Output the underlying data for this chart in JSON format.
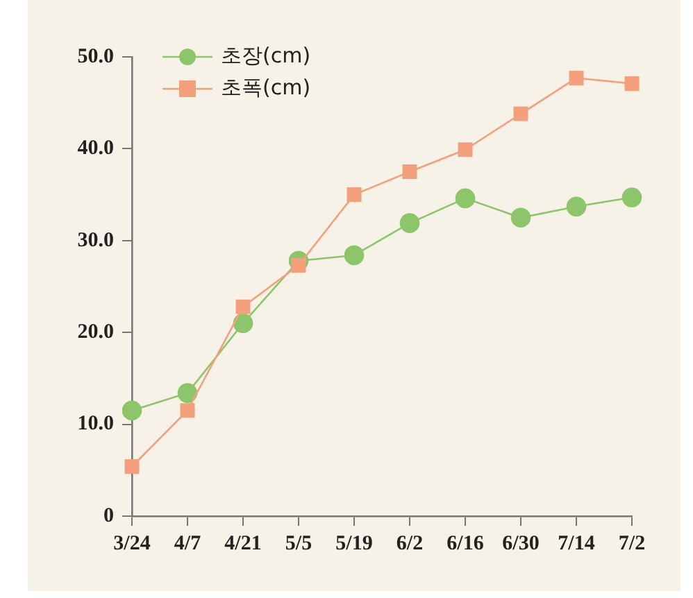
{
  "chart_data": {
    "type": "line",
    "categories": [
      "3/24",
      "4/7",
      "4/21",
      "5/5",
      "5/19",
      "6/2",
      "6/16",
      "6/30",
      "7/14",
      "7/2"
    ],
    "series": [
      {
        "name": "초장(cm)",
        "color": "#8cc56a",
        "marker": "circle",
        "values": [
          11.5,
          13.4,
          21.0,
          27.8,
          28.4,
          31.9,
          34.6,
          32.5,
          33.7,
          34.7
        ]
      },
      {
        "name": "초폭(cm)",
        "color": "#f4a07c",
        "marker": "square",
        "values": [
          5.4,
          11.5,
          22.8,
          27.3,
          35.0,
          37.5,
          39.9,
          43.8,
          47.7,
          47.1
        ]
      }
    ],
    "ylim": [
      0,
      50
    ],
    "yticks": [
      {
        "value": 0,
        "label": "0"
      },
      {
        "value": 10,
        "label": "10.0"
      },
      {
        "value": 20,
        "label": "20.0"
      },
      {
        "value": 30,
        "label": "30.0"
      },
      {
        "value": 40,
        "label": "40.0"
      },
      {
        "value": 50,
        "label": "50.0"
      }
    ],
    "grid": false,
    "legend": "top left",
    "line_style": "solid"
  }
}
